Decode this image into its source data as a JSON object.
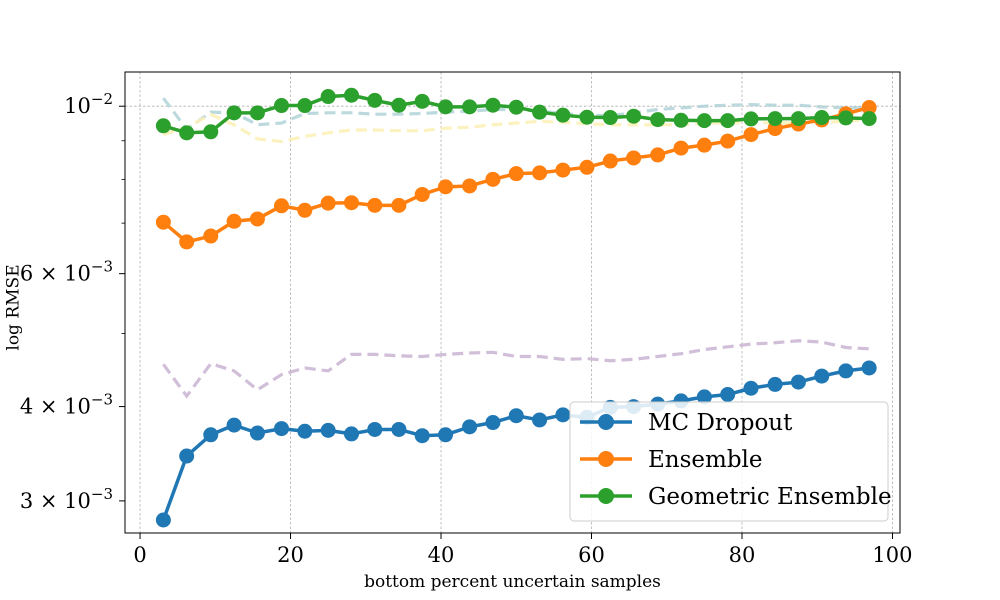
{
  "chart_data": {
    "type": "line",
    "title": "",
    "xlabel": "bottom percent uncertain samples",
    "ylabel": "log RMSE",
    "yscale": "log",
    "xlim": [
      -2,
      101
    ],
    "ylim": [
      0.00272,
      0.0111
    ],
    "xticks": [
      0,
      20,
      40,
      60,
      80,
      100
    ],
    "xtick_labels": [
      "0",
      "20",
      "40",
      "60",
      "80",
      "100"
    ],
    "yticks": [
      0.003,
      0.004,
      0.006,
      0.01
    ],
    "ytick_labels": [
      {
        "mantissa": "3 × 10",
        "exp": "−3"
      },
      {
        "mantissa": "4 × 10",
        "exp": "−3"
      },
      {
        "mantissa": "6 × 10",
        "exp": "−3"
      },
      {
        "mantissa": "10",
        "exp": "−2"
      }
    ],
    "grid": true,
    "legend_position": "lower-right",
    "x": [
      3.1,
      6.2,
      9.4,
      12.5,
      15.6,
      18.8,
      21.9,
      25.0,
      28.1,
      31.2,
      34.4,
      37.5,
      40.6,
      43.8,
      46.9,
      50.0,
      53.1,
      56.2,
      59.4,
      62.5,
      65.6,
      68.8,
      71.9,
      75.0,
      78.1,
      81.2,
      84.4,
      87.5,
      90.6,
      93.8,
      96.9
    ],
    "series": [
      {
        "name": "MC Dropout",
        "color": "#1f77b4",
        "values": [
          0.00283,
          0.00344,
          0.00367,
          0.00378,
          0.00369,
          0.00374,
          0.00371,
          0.00372,
          0.00368,
          0.00373,
          0.00373,
          0.00366,
          0.00367,
          0.00376,
          0.00381,
          0.00389,
          0.00384,
          0.0039,
          0.00387,
          0.00399,
          0.004,
          0.00403,
          0.00407,
          0.00412,
          0.00415,
          0.00423,
          0.00428,
          0.00431,
          0.00439,
          0.00446,
          0.0045
        ]
      },
      {
        "name": "Ensemble",
        "color": "#ff7f0e",
        "values": [
          0.00702,
          0.00661,
          0.00673,
          0.00704,
          0.00709,
          0.00738,
          0.00728,
          0.00744,
          0.00745,
          0.00739,
          0.00739,
          0.00764,
          0.00782,
          0.00784,
          0.008,
          0.00814,
          0.00816,
          0.00823,
          0.0083,
          0.00846,
          0.00854,
          0.00862,
          0.0088,
          0.00888,
          0.00899,
          0.00917,
          0.00934,
          0.00947,
          0.00959,
          0.00977,
          0.00996
        ]
      },
      {
        "name": "Geometric Ensemble",
        "color": "#2ca02c",
        "values": [
          0.00942,
          0.00922,
          0.00925,
          0.0098,
          0.0098,
          0.01002,
          0.01002,
          0.0103,
          0.01034,
          0.01018,
          0.01003,
          0.01015,
          0.00998,
          0.00998,
          0.01003,
          0.00997,
          0.00982,
          0.00973,
          0.00967,
          0.00966,
          0.0097,
          0.0096,
          0.00958,
          0.00957,
          0.00957,
          0.00962,
          0.00963,
          0.00963,
          0.00966,
          0.00965,
          0.00963
        ]
      }
    ],
    "background_series": [
      {
        "color": "#b0d4d8",
        "values": [
          0.01025,
          0.00932,
          0.00982,
          0.0098,
          0.00945,
          0.0095,
          0.00978,
          0.0098,
          0.0098,
          0.00976,
          0.00976,
          0.00978,
          0.00982,
          0.00985,
          0.0099,
          0.0099,
          0.00985,
          0.00978,
          0.00972,
          0.00972,
          0.0098,
          0.0099,
          0.00995,
          0.01,
          0.01003,
          0.01005,
          0.01003,
          0.01003,
          0.00998,
          0.00995,
          0.00995
        ]
      },
      {
        "color": "#fbf0b4",
        "values": [
          0.00917,
          0.00938,
          0.00975,
          0.00945,
          0.00905,
          0.00898,
          0.00912,
          0.00922,
          0.0093,
          0.0093,
          0.00928,
          0.00928,
          0.00935,
          0.00938,
          0.00945,
          0.0095,
          0.00955,
          0.00952,
          0.00948,
          0.00945,
          0.00945,
          0.00945,
          0.00945,
          0.0095,
          0.0095,
          0.00952,
          0.0095,
          0.0095,
          0.00952,
          0.00955,
          0.0096
        ]
      },
      {
        "color": "#c9b3d1",
        "values": [
          0.00455,
          0.00413,
          0.00456,
          0.00446,
          0.00421,
          0.00441,
          0.0045,
          0.00446,
          0.00469,
          0.00469,
          0.00467,
          0.00466,
          0.00469,
          0.00471,
          0.00472,
          0.00466,
          0.00466,
          0.00462,
          0.00463,
          0.0046,
          0.00462,
          0.00466,
          0.0047,
          0.00476,
          0.0048,
          0.00484,
          0.00486,
          0.00489,
          0.00487,
          0.00479,
          0.00477
        ]
      }
    ]
  }
}
